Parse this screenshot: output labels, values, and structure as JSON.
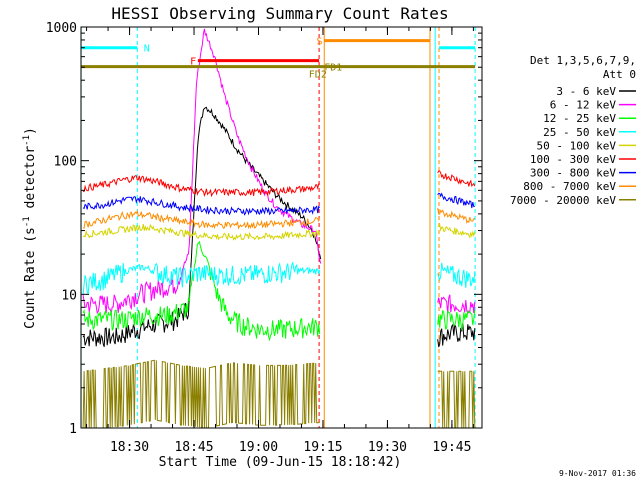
{
  "chart_data": {
    "type": "line",
    "title": "HESSI Observing Summary Count Rates",
    "xlabel": "Start Time (09-Jun-15 18:18:42)",
    "ylabel_main": "Count Rate (s",
    "ylabel_sup1": "-1",
    "ylabel_mid": " detector",
    "ylabel_sup2": "-1",
    "ylabel_end": ")",
    "footer": "9-Nov-2017 01:36",
    "y_scale": "log",
    "xlim": [
      18.3117,
      19.8667
    ],
    "ylim": [
      1,
      1000
    ],
    "x_ticks": [
      {
        "label": "18:30",
        "value": 18.5
      },
      {
        "label": "18:45",
        "value": 18.75
      },
      {
        "label": "19:00",
        "value": 19.0
      },
      {
        "label": "19:15",
        "value": 19.25
      },
      {
        "label": "19:30",
        "value": 19.5
      },
      {
        "label": "19:45",
        "value": 19.75
      }
    ],
    "y_ticks": [
      {
        "label": "1",
        "value": 1
      },
      {
        "label": "10",
        "value": 10
      },
      {
        "label": "100",
        "value": 100
      },
      {
        "label": "1000",
        "value": 1000
      }
    ],
    "legend_title_1": "Det 1,3,5,6,7,9,",
    "legend_title_2": "Att 0",
    "legend_position": "right",
    "series": [
      {
        "name": "3 - 6 keV",
        "color": "#000000",
        "segments": [
          [
            [
              18.32,
              4.8
            ],
            [
              18.45,
              4.8
            ],
            [
              18.53,
              5.5
            ],
            [
              18.6,
              6.0
            ],
            [
              18.68,
              6.5
            ],
            [
              18.73,
              8.0
            ],
            [
              18.765,
              150
            ],
            [
              18.79,
              260
            ],
            [
              18.83,
              220
            ],
            [
              18.87,
              170
            ],
            [
              18.92,
              120
            ],
            [
              18.97,
              90
            ],
            [
              19.02,
              70
            ],
            [
              19.07,
              55
            ],
            [
              19.12,
              45
            ],
            [
              19.17,
              38
            ],
            [
              19.21,
              30
            ],
            [
              19.245,
              18
            ]
          ],
          [
            [
              19.695,
              4.8
            ],
            [
              19.72,
              5.0
            ],
            [
              19.78,
              5.2
            ],
            [
              19.84,
              5.2
            ]
          ]
        ]
      },
      {
        "name": "6 - 12 keV",
        "color": "#ff00ff",
        "segments": [
          [
            [
              18.32,
              8.5
            ],
            [
              18.45,
              8.5
            ],
            [
              18.53,
              10
            ],
            [
              18.6,
              11
            ],
            [
              18.68,
              12
            ],
            [
              18.73,
              20
            ],
            [
              18.76,
              400
            ],
            [
              18.79,
              950
            ],
            [
              18.83,
              600
            ],
            [
              18.87,
              300
            ],
            [
              18.92,
              150
            ],
            [
              18.97,
              90
            ],
            [
              19.02,
              60
            ],
            [
              19.07,
              45
            ],
            [
              19.12,
              38
            ],
            [
              19.17,
              33
            ],
            [
              19.22,
              30
            ],
            [
              19.245,
              15
            ]
          ],
          [
            [
              19.695,
              8.5
            ],
            [
              19.75,
              8.5
            ],
            [
              19.84,
              8.5
            ]
          ]
        ]
      },
      {
        "name": "12 - 25 keV",
        "color": "#00ff00",
        "segments": [
          [
            [
              18.32,
              6.5
            ],
            [
              18.48,
              6.5
            ],
            [
              18.55,
              7.0
            ],
            [
              18.65,
              7.0
            ],
            [
              18.73,
              8
            ],
            [
              18.765,
              25
            ],
            [
              18.8,
              18
            ],
            [
              18.84,
              10
            ],
            [
              18.88,
              7
            ],
            [
              18.93,
              6
            ],
            [
              19.0,
              5.5
            ],
            [
              19.1,
              5.5
            ],
            [
              19.24,
              5.8
            ]
          ],
          [
            [
              19.695,
              6.5
            ],
            [
              19.75,
              6.5
            ],
            [
              19.84,
              6.5
            ]
          ]
        ]
      },
      {
        "name": "25 - 50 keV",
        "color": "#00ffff",
        "segments": [
          [
            [
              18.32,
              12
            ],
            [
              18.4,
              13
            ],
            [
              18.48,
              15
            ],
            [
              18.55,
              16
            ],
            [
              18.62,
              14.5
            ],
            [
              18.7,
              13.5
            ],
            [
              18.77,
              14.5
            ],
            [
              18.85,
              14
            ],
            [
              18.95,
              14
            ],
            [
              19.05,
              14.5
            ],
            [
              19.15,
              15
            ],
            [
              19.24,
              15
            ]
          ],
          [
            [
              19.695,
              15
            ],
            [
              19.75,
              14
            ],
            [
              19.84,
              13
            ]
          ]
        ]
      },
      {
        "name": "50 - 100 keV",
        "color": "#d4d400",
        "segments": [
          [
            [
              18.32,
              28
            ],
            [
              18.45,
              30
            ],
            [
              18.55,
              32
            ],
            [
              18.65,
              30
            ],
            [
              18.75,
              28
            ],
            [
              18.85,
              27
            ],
            [
              18.95,
              27
            ],
            [
              19.05,
              27
            ],
            [
              19.15,
              28
            ],
            [
              19.24,
              29
            ]
          ],
          [
            [
              19.695,
              32
            ],
            [
              19.75,
              30
            ],
            [
              19.84,
              28
            ]
          ]
        ]
      },
      {
        "name": "100 - 300 keV",
        "color": "#ff0000",
        "segments": [
          [
            [
              18.32,
              62
            ],
            [
              18.4,
              66
            ],
            [
              18.48,
              72
            ],
            [
              18.53,
              75
            ],
            [
              18.6,
              70
            ],
            [
              18.7,
              62
            ],
            [
              18.8,
              58
            ],
            [
              18.9,
              58
            ],
            [
              19.0,
              58
            ],
            [
              19.1,
              60
            ],
            [
              19.2,
              62
            ],
            [
              19.24,
              64
            ]
          ],
          [
            [
              19.695,
              80
            ],
            [
              19.75,
              75
            ],
            [
              19.84,
              65
            ]
          ]
        ]
      },
      {
        "name": "300 - 800 keV",
        "color": "#0000ff",
        "segments": [
          [
            [
              18.32,
              45
            ],
            [
              18.4,
              47
            ],
            [
              18.48,
              51
            ],
            [
              18.53,
              52
            ],
            [
              18.6,
              49
            ],
            [
              18.7,
              45
            ],
            [
              18.8,
              43
            ],
            [
              18.9,
              42
            ],
            [
              19.0,
              42
            ],
            [
              19.1,
              42
            ],
            [
              19.2,
              43
            ],
            [
              19.24,
              43
            ]
          ],
          [
            [
              19.695,
              55
            ],
            [
              19.75,
              52
            ],
            [
              19.84,
              46
            ]
          ]
        ]
      },
      {
        "name": "800 - 7000 keV",
        "color": "#ff8c00",
        "segments": [
          [
            [
              18.32,
              33
            ],
            [
              18.4,
              36
            ],
            [
              18.48,
              39
            ],
            [
              18.53,
              40
            ],
            [
              18.6,
              38
            ],
            [
              18.7,
              35
            ],
            [
              18.8,
              33
            ],
            [
              18.9,
              33
            ],
            [
              19.0,
              33
            ],
            [
              19.1,
              34
            ],
            [
              19.2,
              35
            ],
            [
              19.24,
              36
            ]
          ],
          [
            [
              19.695,
              42
            ],
            [
              19.75,
              39
            ],
            [
              19.84,
              35
            ]
          ]
        ]
      },
      {
        "name": "7000 - 20000 keV",
        "color": "#8b7f00",
        "segments": [
          [
            [
              18.32,
              1.9
            ],
            [
              18.5,
              2.1
            ],
            [
              18.6,
              2.3
            ],
            [
              18.7,
              2.1
            ],
            [
              18.8,
              2.0
            ],
            [
              18.9,
              2.2
            ],
            [
              19.0,
              2.1
            ],
            [
              19.1,
              2.1
            ],
            [
              19.24,
              2.2
            ]
          ],
          [
            [
              19.695,
              1.9
            ],
            [
              19.75,
              1.9
            ],
            [
              19.84,
              1.9
            ]
          ]
        ]
      }
    ],
    "flag_bars": [
      {
        "label": "N",
        "color": "#00ffff",
        "y": 700,
        "segments": [
          [
            18.312,
            18.53
          ],
          [
            19.7,
            19.84
          ]
        ],
        "label_x": 18.555
      },
      {
        "label": "F",
        "color": "#ff0000",
        "y": 560,
        "segments": [
          [
            18.765,
            19.235
          ]
        ],
        "label_x": 18.735
      },
      {
        "label": "S",
        "color": "#ff8c00",
        "y": 790,
        "segments": [
          [
            19.255,
            19.665
          ]
        ],
        "label_x": 19.225
      },
      {
        "label": "FD1",
        "color": "#8b7f00",
        "y": 505,
        "segments": [
          [
            18.312,
            19.84
          ]
        ],
        "label_x": 19.255
      },
      {
        "label": "FD2",
        "color": "#8b7f00",
        "y": 450,
        "segments": [],
        "label_x": 19.195
      }
    ],
    "vertical_markers": [
      {
        "x": 18.312,
        "color": "#00ffff",
        "style": "solid"
      },
      {
        "x": 18.53,
        "color": "#00ffff",
        "style": "dashed"
      },
      {
        "x": 19.235,
        "color": "#ff0000",
        "style": "dashed"
      },
      {
        "x": 19.255,
        "color": "#ff8c00",
        "style": "solid"
      },
      {
        "x": 19.665,
        "color": "#ff8c00",
        "style": "solid"
      },
      {
        "x": 19.7,
        "color": "#ff8c00",
        "style": "dashed"
      },
      {
        "x": 19.685,
        "color": "#00ffff",
        "style": "solid"
      },
      {
        "x": 19.84,
        "color": "#00ffff",
        "style": "dashed"
      }
    ]
  }
}
